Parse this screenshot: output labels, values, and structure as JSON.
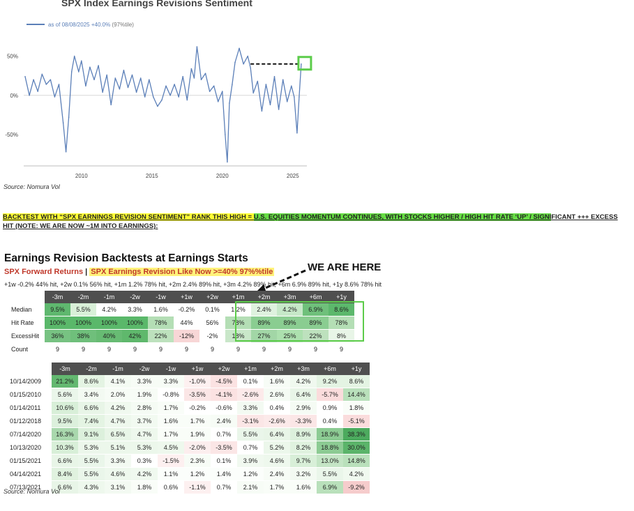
{
  "chart_data": {
    "type": "line",
    "title": "SPX Index Earnings Revisions Sentiment",
    "legend_label": "as of 08/08/2025 +40.0%",
    "legend_highlight": "(97%tile)",
    "x_ticks": [
      "2010",
      "2015",
      "2020",
      "2025"
    ],
    "y_ticks": [
      "50%",
      "0%",
      "-50%"
    ],
    "xlim": [
      2005.9,
      2026.0
    ],
    "ylim": [
      -90,
      70
    ],
    "series": [
      {
        "name": "SPX Earnings Revisions Sentiment",
        "color": "#5b7fb8",
        "x": [
          2006.0,
          2006.3,
          2006.6,
          2006.9,
          2007.2,
          2007.5,
          2007.8,
          2008.1,
          2008.4,
          2008.7,
          2008.9,
          2009.1,
          2009.3,
          2009.5,
          2009.8,
          2010.0,
          2010.3,
          2010.6,
          2010.9,
          2011.2,
          2011.5,
          2011.8,
          2012.1,
          2012.4,
          2012.7,
          2013.0,
          2013.3,
          2013.6,
          2013.9,
          2014.2,
          2014.5,
          2014.8,
          2015.1,
          2015.4,
          2015.7,
          2016.0,
          2016.3,
          2016.6,
          2016.9,
          2017.2,
          2017.5,
          2017.8,
          2018.0,
          2018.2,
          2018.5,
          2018.8,
          2019.1,
          2019.4,
          2019.7,
          2020.0,
          2020.2,
          2020.35,
          2020.5,
          2020.7,
          2020.9,
          2021.2,
          2021.5,
          2021.8,
          2022.0,
          2022.2,
          2022.5,
          2022.8,
          2023.1,
          2023.4,
          2023.7,
          2024.0,
          2024.3,
          2024.6,
          2024.9,
          2025.1,
          2025.3,
          2025.45,
          2025.6
        ],
        "y": [
          24,
          0,
          20,
          5,
          27,
          14,
          20,
          -2,
          14,
          -35,
          -72,
          -28,
          30,
          50,
          30,
          44,
          12,
          36,
          20,
          38,
          4,
          26,
          -12,
          22,
          8,
          32,
          10,
          26,
          4,
          22,
          -2,
          20,
          -2,
          -14,
          -6,
          12,
          0,
          14,
          -2,
          24,
          -6,
          34,
          22,
          62,
          20,
          28,
          5,
          12,
          -8,
          5,
          -50,
          -85,
          -10,
          14,
          42,
          60,
          40,
          50,
          35,
          3,
          18,
          -20,
          14,
          -12,
          24,
          -18,
          20,
          -8,
          12,
          -2,
          -48,
          -2,
          40
        ]
      }
    ],
    "source": "Source: Nomura Vol",
    "annotation_box": "current reading"
  },
  "headline": {
    "part1": "BACKTEST WITH “SPX EARNINGS REVISION SENTIMENT” RANK THIS HIGH = ",
    "part2": "U.S. EQUITIES MOMENTUM CONTINUES, WITH STOCKS HIGHER / HIGH HIT RATE ‘UP’ / SIGNI",
    "part3": "FICANT +++ EXCESS HIT (NOTE: WE ARE NOW ~1M INTO EARNINGS):"
  },
  "backtest": {
    "title": "Earnings Revision Backtests at Earnings Starts",
    "subtitle_part1": "SPX Forward Returns",
    "subtitle_sep": "|",
    "subtitle_part2": "SPX Earnings Revision Like Now >=40% 97%%tile",
    "we_are_here": "WE ARE HERE",
    "summary_line": "+1w -0.2% 44% hit, +2w 0.1% 56% hit, +1m 1.2% 78% hit, +2m 2.4% 89% hit, +3m 4.2% 89% hit, +6m 6.9% 89% hit, +1y 8.6% 78% hit",
    "columns": [
      "-3m",
      "-2m",
      "-1m",
      "-2w",
      "-1w",
      "+1w",
      "+2w",
      "+1m",
      "+2m",
      "+3m",
      "+6m",
      "+1y"
    ],
    "summary_rows": [
      {
        "label": "Median",
        "cells": [
          "9.5%",
          "5.5%",
          "4.2%",
          "3.3%",
          "1.6%",
          "-0.2%",
          "0.1%",
          "1.2%",
          "2.4%",
          "4.2%",
          "6.9%",
          "8.6%"
        ],
        "bg": [
          "#5fb86f",
          "#d9f0d8",
          "#ffffff",
          "#ffffff",
          "#ffffff",
          "#ffffff",
          "#ffffff",
          "#ffffff",
          "#dff2df",
          "#c6e8c8",
          "#6fc07b",
          "#5cb86c"
        ]
      },
      {
        "label": "Hit Rate",
        "cells": [
          "100%",
          "100%",
          "100%",
          "100%",
          "78%",
          "44%",
          "56%",
          "78%",
          "89%",
          "89%",
          "89%",
          "78%"
        ],
        "bg": [
          "#5ab86a",
          "#5ab86a",
          "#5ab86a",
          "#5ab86a",
          "#b4deb5",
          "#ffffff",
          "#ffffff",
          "#b4deb5",
          "#8acd91",
          "#8acd91",
          "#8acd91",
          "#b4deb5"
        ]
      },
      {
        "label": "ExcessHit",
        "cells": [
          "36%",
          "38%",
          "40%",
          "42%",
          "22%",
          "-12%",
          "-2%",
          "18%",
          "27%",
          "25%",
          "22%",
          "8%"
        ],
        "bg": [
          "#77c282",
          "#6fbf7b",
          "#67bb73",
          "#5fb86c",
          "#bde1bd",
          "#f8d6d6",
          "#ffffff",
          "#c9e7c9",
          "#a2d6a6",
          "#ace0ae",
          "#bde1bd",
          "#e8f5e7"
        ]
      },
      {
        "label": "Count",
        "cells": [
          "9",
          "9",
          "9",
          "9",
          "9",
          "9",
          "9",
          "9",
          "9",
          "9",
          "9",
          "9"
        ],
        "bg": [
          "#ffffff",
          "#ffffff",
          "#ffffff",
          "#ffffff",
          "#ffffff",
          "#ffffff",
          "#ffffff",
          "#ffffff",
          "#ffffff",
          "#ffffff",
          "#ffffff",
          "#ffffff"
        ]
      }
    ],
    "date_rows": [
      {
        "label": "10/14/2009",
        "cells": [
          "21.2%",
          "8.6%",
          "4.1%",
          "3.3%",
          "3.3%",
          "-1.0%",
          "-4.5%",
          "0.1%",
          "1.6%",
          "4.2%",
          "9.2%",
          "8.6%"
        ],
        "bg": [
          "#63b870",
          "#e4f4e3",
          "#f4fbf3",
          "#f7fcf6",
          "#f7fcf6",
          "#fdf0f0",
          "#fbe2e2",
          "#ffffff",
          "#f7fcf6",
          "#f0f9ef",
          "#e4f4e3",
          "#e4f4e3"
        ]
      },
      {
        "label": "01/15/2010",
        "cells": [
          "5.6%",
          "3.4%",
          "2.0%",
          "1.9%",
          "-0.8%",
          "-3.5%",
          "-4.1%",
          "-2.6%",
          "2.6%",
          "6.4%",
          "-5.7%",
          "14.4%"
        ],
        "bg": [
          "#eaf6ea",
          "#f3faf2",
          "#f7fcf6",
          "#f7fcf6",
          "#ffffff",
          "#fbe6e6",
          "#fbe2e2",
          "#fceaea",
          "#f5fbf4",
          "#e8f5e7",
          "#fadcdc",
          "#b9e0bb"
        ]
      },
      {
        "label": "01/14/2011",
        "cells": [
          "10.6%",
          "6.6%",
          "4.2%",
          "2.8%",
          "1.7%",
          "-0.2%",
          "-0.6%",
          "3.3%",
          "0.4%",
          "2.9%",
          "0.9%",
          "1.8%"
        ],
        "bg": [
          "#d8efd8",
          "#e8f5e7",
          "#f0f9ef",
          "#f5fbf4",
          "#f9fdf8",
          "#ffffff",
          "#ffffff",
          "#f3faf2",
          "#ffffff",
          "#f5fbf4",
          "#ffffff",
          "#f9fdf8"
        ]
      },
      {
        "label": "01/12/2018",
        "cells": [
          "9.5%",
          "7.4%",
          "4.7%",
          "3.7%",
          "1.6%",
          "1.7%",
          "2.4%",
          "-3.1%",
          "-2.6%",
          "-3.3%",
          "0.4%",
          "-5.1%"
        ],
        "bg": [
          "#dcf0dc",
          "#e4f4e3",
          "#eef8ed",
          "#f2faf1",
          "#f9fdf8",
          "#f9fdf8",
          "#f7fcf6",
          "#fbe6e6",
          "#fceaea",
          "#fbe6e6",
          "#ffffff",
          "#fadcdc"
        ]
      },
      {
        "label": "07/14/2020",
        "cells": [
          "16.3%",
          "9.1%",
          "6.5%",
          "4.7%",
          "1.7%",
          "1.9%",
          "0.7%",
          "5.5%",
          "6.4%",
          "8.9%",
          "18.9%",
          "38.3%"
        ],
        "bg": [
          "#a9d8ad",
          "#dcf0dc",
          "#e8f5e7",
          "#eef8ed",
          "#f9fdf8",
          "#f9fdf8",
          "#ffffff",
          "#eaf6ea",
          "#e8f5e7",
          "#dcf0dc",
          "#8ccb93",
          "#4caa5e"
        ]
      },
      {
        "label": "10/13/2020",
        "cells": [
          "10.3%",
          "5.3%",
          "5.1%",
          "5.3%",
          "4.5%",
          "-2.0%",
          "-3.5%",
          "0.7%",
          "5.2%",
          "8.2%",
          "18.8%",
          "30.0%"
        ],
        "bg": [
          "#d8efd8",
          "#ecf7eb",
          "#ecf7eb",
          "#ecf7eb",
          "#eef8ed",
          "#fceeee",
          "#fbe6e6",
          "#ffffff",
          "#ecf7eb",
          "#e0f2df",
          "#8ccb93",
          "#5bb46a"
        ]
      },
      {
        "label": "01/15/2021",
        "cells": [
          "6.6%",
          "5.5%",
          "3.3%",
          "0.3%",
          "-1.5%",
          "2.3%",
          "0.1%",
          "3.9%",
          "4.6%",
          "9.7%",
          "13.0%",
          "14.8%"
        ],
        "bg": [
          "#e8f5e7",
          "#eaf6ea",
          "#f3faf2",
          "#ffffff",
          "#fdf0f0",
          "#f7fcf6",
          "#ffffff",
          "#f1f9f0",
          "#eef8ed",
          "#d8efd8",
          "#c4e5c5",
          "#b9e0bb"
        ]
      },
      {
        "label": "04/14/2021",
        "cells": [
          "8.4%",
          "5.5%",
          "4.6%",
          "4.2%",
          "1.1%",
          "1.2%",
          "1.4%",
          "1.2%",
          "2.4%",
          "3.2%",
          "5.5%",
          "4.2%"
        ],
        "bg": [
          "#e0f2df",
          "#eaf6ea",
          "#eef8ed",
          "#f0f9ef",
          "#fbfefb",
          "#fbfefb",
          "#fbfefb",
          "#fbfefb",
          "#f7fcf6",
          "#f3faf2",
          "#eaf6ea",
          "#f0f9ef"
        ]
      },
      {
        "label": "07/13/2021",
        "cells": [
          "6.6%",
          "4.3%",
          "3.1%",
          "1.8%",
          "0.6%",
          "-1.1%",
          "0.7%",
          "2.1%",
          "1.7%",
          "1.6%",
          "6.9%",
          "-9.2%"
        ],
        "bg": [
          "#e8f5e7",
          "#eef8ed",
          "#f3faf2",
          "#f9fdf8",
          "#ffffff",
          "#fdf0f0",
          "#ffffff",
          "#f7fcf6",
          "#f9fdf8",
          "#f9fdf8",
          "#b9e0bb",
          "#f6cccc"
        ]
      }
    ],
    "source": "Source: Nomura Vol"
  }
}
